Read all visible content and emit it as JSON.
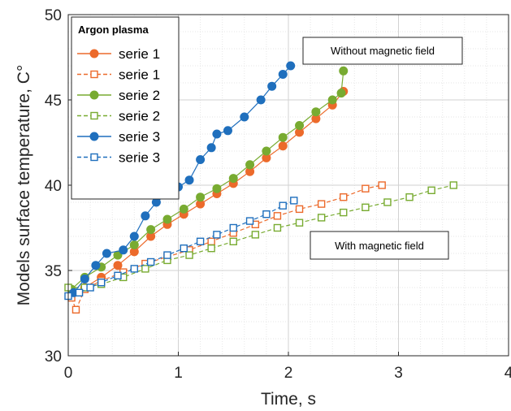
{
  "chart_data": {
    "type": "line",
    "xlabel": "Time, s",
    "ylabel": "Models surface temperature, C°",
    "xlim": [
      0,
      4
    ],
    "ylim": [
      30,
      50
    ],
    "xticks": [
      "0",
      "1",
      "2",
      "3",
      "4"
    ],
    "yticks": [
      "30",
      "35",
      "40",
      "45",
      "50"
    ],
    "grid": true,
    "legend": {
      "title": "Argon plasma",
      "position": "top-left"
    },
    "annotations": [
      "Without magnetic field",
      "With magnetic field"
    ],
    "series": [
      {
        "name": "serie 1",
        "color": "#ec6a2b",
        "style": "solid",
        "marker": "filled-circle",
        "x": [
          0.03,
          0.15,
          0.3,
          0.45,
          0.6,
          0.75,
          0.9,
          1.05,
          1.2,
          1.35,
          1.5,
          1.65,
          1.8,
          1.95,
          2.1,
          2.25,
          2.4,
          2.5
        ],
        "y": [
          33.6,
          34.0,
          34.6,
          35.3,
          36.1,
          37.0,
          37.7,
          38.3,
          38.9,
          39.5,
          40.1,
          40.8,
          41.6,
          42.3,
          43.1,
          43.9,
          44.7,
          45.5
        ]
      },
      {
        "name": "serie 1",
        "color": "#ec6a2b",
        "style": "dashed",
        "marker": "open-square",
        "x": [
          0.03,
          0.07,
          0.15,
          0.3,
          0.5,
          0.7,
          0.9,
          1.1,
          1.3,
          1.5,
          1.7,
          1.9,
          2.1,
          2.3,
          2.5,
          2.7,
          2.85
        ],
        "y": [
          33.4,
          32.7,
          33.9,
          34.4,
          34.9,
          35.4,
          35.8,
          36.2,
          36.7,
          37.2,
          37.7,
          38.2,
          38.6,
          38.9,
          39.3,
          39.8,
          40.0
        ]
      },
      {
        "name": "serie 2",
        "color": "#78ab31",
        "style": "solid",
        "marker": "filled-circle",
        "x": [
          0.03,
          0.15,
          0.3,
          0.45,
          0.6,
          0.75,
          0.9,
          1.05,
          1.2,
          1.35,
          1.5,
          1.65,
          1.8,
          1.95,
          2.1,
          2.25,
          2.4,
          2.48,
          2.5
        ],
        "y": [
          33.9,
          34.6,
          35.2,
          35.9,
          36.5,
          37.4,
          38.0,
          38.6,
          39.3,
          39.8,
          40.4,
          41.2,
          42.0,
          42.8,
          43.5,
          44.3,
          45.0,
          45.4,
          46.7
        ]
      },
      {
        "name": "serie 2",
        "color": "#78ab31",
        "style": "dashed",
        "marker": "open-square",
        "x": [
          0.0,
          0.15,
          0.3,
          0.5,
          0.7,
          0.9,
          1.1,
          1.3,
          1.5,
          1.7,
          1.9,
          2.1,
          2.3,
          2.5,
          2.7,
          2.9,
          3.1,
          3.3,
          3.5
        ],
        "y": [
          34.0,
          34.0,
          34.2,
          34.6,
          35.1,
          35.6,
          35.9,
          36.3,
          36.7,
          37.1,
          37.5,
          37.8,
          38.1,
          38.4,
          38.7,
          39.0,
          39.3,
          39.7,
          40.0
        ]
      },
      {
        "name": "serie 3",
        "color": "#1f6fbd",
        "style": "solid",
        "marker": "filled-circle",
        "x": [
          0.05,
          0.15,
          0.25,
          0.35,
          0.5,
          0.6,
          0.7,
          0.8,
          0.9,
          1.0,
          1.1,
          1.2,
          1.3,
          1.35,
          1.45,
          1.6,
          1.75,
          1.85,
          1.95,
          2.02
        ],
        "y": [
          33.7,
          34.5,
          35.3,
          36.0,
          36.2,
          37.0,
          38.2,
          39.0,
          39.5,
          39.9,
          40.3,
          41.5,
          42.2,
          43.0,
          43.2,
          44.0,
          45.0,
          45.8,
          46.5,
          47.0
        ]
      },
      {
        "name": "serie 3",
        "color": "#1f6fbd",
        "style": "dashed",
        "marker": "open-square",
        "x": [
          0.0,
          0.1,
          0.2,
          0.3,
          0.45,
          0.6,
          0.75,
          0.9,
          1.05,
          1.2,
          1.35,
          1.5,
          1.65,
          1.8,
          1.95,
          2.05
        ],
        "y": [
          33.5,
          33.7,
          34.0,
          34.3,
          34.7,
          35.1,
          35.5,
          35.9,
          36.3,
          36.7,
          37.1,
          37.5,
          37.9,
          38.3,
          38.8,
          39.1
        ]
      }
    ]
  }
}
